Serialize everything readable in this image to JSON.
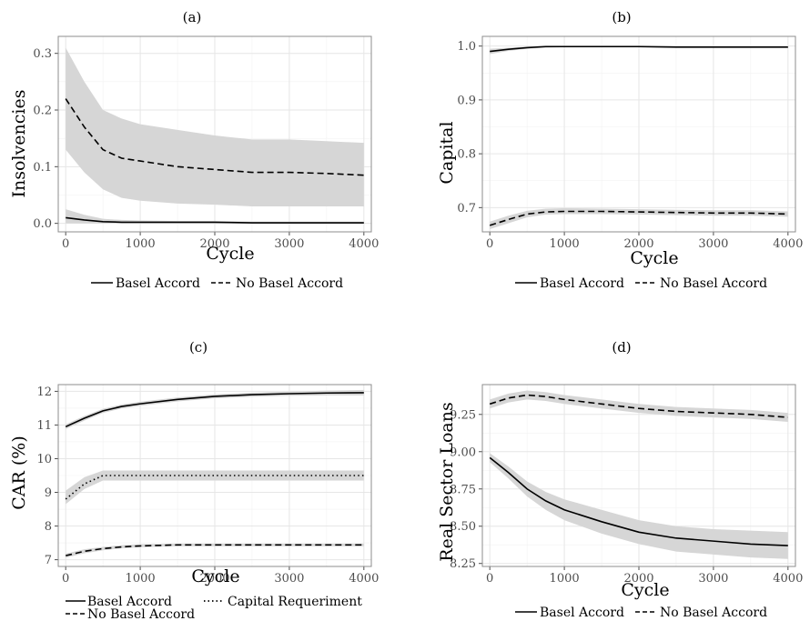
{
  "panels": [
    {
      "label": "(a)",
      "xlabel": "Cycle",
      "ylabel": "Insolvencies",
      "legend": [
        {
          "name": "Basel Accord",
          "style": "solid"
        },
        {
          "name": "No Basel Accord",
          "style": "dashed"
        }
      ]
    },
    {
      "label": "(b)",
      "xlabel": "Cycle",
      "ylabel": "Capital",
      "legend": [
        {
          "name": "Basel Accord",
          "style": "solid"
        },
        {
          "name": "No Basel Accord",
          "style": "dashed"
        }
      ]
    },
    {
      "label": "(c)",
      "xlabel": "Cycle",
      "ylabel": "CAR (%)",
      "legend": [
        {
          "name": "Basel Accord",
          "style": "solid"
        },
        {
          "name": "Capital Requeriment",
          "style": "dotted"
        },
        {
          "name": "No Basel Accord",
          "style": "dashed"
        }
      ]
    },
    {
      "label": "(d)",
      "xlabel": "Cycle",
      "ylabel": "Real Sector Loans",
      "legend": [
        {
          "name": "Basel Accord",
          "style": "solid"
        },
        {
          "name": "No Basel Accord",
          "style": "dashed"
        }
      ]
    }
  ],
  "chart_data": [
    {
      "type": "line",
      "title": "(a)",
      "xlabel": "Cycle",
      "ylabel": "Insolvencies",
      "xlim": [
        -100,
        4100
      ],
      "ylim": [
        -0.015,
        0.33
      ],
      "xticks": [
        0,
        1000,
        2000,
        3000,
        4000
      ],
      "yticks": [
        0.0,
        0.1,
        0.2,
        0.3
      ],
      "ytick_labels": [
        "0.0",
        "0.1",
        "0.2",
        "0.3"
      ],
      "grid": true,
      "legend_position": "bottom",
      "x": [
        0,
        250,
        500,
        750,
        1000,
        1500,
        2000,
        2500,
        3000,
        3500,
        4000
      ],
      "series": [
        {
          "name": "Basel Accord",
          "style": "solid",
          "values": [
            0.01,
            0.006,
            0.003,
            0.002,
            0.002,
            0.002,
            0.002,
            0.001,
            0.001,
            0.001,
            0.001
          ],
          "lower": [
            0.0,
            0.0,
            0.0,
            0.0,
            0.0,
            0.0,
            0.0,
            0.0,
            0.0,
            0.0,
            0.0
          ],
          "upper": [
            0.025,
            0.015,
            0.008,
            0.006,
            0.005,
            0.004,
            0.004,
            0.003,
            0.003,
            0.003,
            0.003
          ]
        },
        {
          "name": "No Basel Accord",
          "style": "dashed",
          "values": [
            0.22,
            0.17,
            0.13,
            0.115,
            0.11,
            0.1,
            0.095,
            0.09,
            0.09,
            0.088,
            0.085
          ],
          "lower": [
            0.13,
            0.09,
            0.06,
            0.045,
            0.04,
            0.035,
            0.033,
            0.03,
            0.03,
            0.03,
            0.03
          ],
          "upper": [
            0.31,
            0.25,
            0.2,
            0.185,
            0.175,
            0.165,
            0.155,
            0.148,
            0.148,
            0.145,
            0.142
          ]
        }
      ]
    },
    {
      "type": "line",
      "title": "(b)",
      "xlabel": "Cycle",
      "ylabel": "Capital",
      "xlim": [
        -100,
        4100
      ],
      "ylim": [
        0.655,
        1.018
      ],
      "xticks": [
        0,
        1000,
        2000,
        3000,
        4000
      ],
      "yticks": [
        0.7,
        0.8,
        0.9,
        1.0
      ],
      "ytick_labels": [
        "0.7",
        "0.8",
        "0.9",
        "1.0"
      ],
      "grid": true,
      "legend_position": "bottom",
      "x": [
        0,
        250,
        500,
        750,
        1000,
        1500,
        2000,
        2500,
        3000,
        3500,
        4000
      ],
      "series": [
        {
          "name": "Basel Accord",
          "style": "solid",
          "values": [
            0.99,
            0.994,
            0.997,
            0.999,
            0.999,
            0.999,
            0.999,
            0.998,
            0.998,
            0.998,
            0.998
          ],
          "lower": [
            0.985,
            0.991,
            0.995,
            0.997,
            0.998,
            0.998,
            0.998,
            0.997,
            0.997,
            0.997,
            0.997
          ],
          "upper": [
            0.995,
            0.997,
            0.999,
            1.0,
            1.0,
            1.0,
            1.0,
            0.999,
            0.999,
            0.999,
            0.999
          ]
        },
        {
          "name": "No Basel Accord",
          "style": "dashed",
          "values": [
            0.667,
            0.678,
            0.688,
            0.692,
            0.693,
            0.693,
            0.692,
            0.691,
            0.69,
            0.69,
            0.688
          ],
          "lower": [
            0.66,
            0.671,
            0.682,
            0.687,
            0.688,
            0.688,
            0.687,
            0.686,
            0.685,
            0.685,
            0.683
          ],
          "upper": [
            0.674,
            0.685,
            0.694,
            0.698,
            0.699,
            0.698,
            0.697,
            0.696,
            0.695,
            0.695,
            0.693
          ]
        }
      ]
    },
    {
      "type": "line",
      "title": "(c)",
      "xlabel": "Cycle",
      "ylabel": "CAR (%)",
      "xlim": [
        -100,
        4100
      ],
      "ylim": [
        6.8,
        12.2
      ],
      "xticks": [
        0,
        1000,
        2000,
        3000,
        4000
      ],
      "yticks": [
        7,
        8,
        9,
        10,
        11,
        12
      ],
      "ytick_labels": [
        "7",
        "8",
        "9",
        "10",
        "11",
        "12"
      ],
      "grid": true,
      "legend_position": "bottom",
      "x": [
        0,
        250,
        500,
        750,
        1000,
        1500,
        2000,
        2500,
        3000,
        3500,
        4000
      ],
      "series": [
        {
          "name": "Basel Accord",
          "style": "solid",
          "values": [
            10.95,
            11.2,
            11.42,
            11.55,
            11.63,
            11.76,
            11.85,
            11.9,
            11.93,
            11.95,
            11.96
          ],
          "lower": [
            10.88,
            11.13,
            11.36,
            11.49,
            11.57,
            11.7,
            11.79,
            11.84,
            11.87,
            11.88,
            11.88
          ],
          "upper": [
            11.02,
            11.27,
            11.48,
            11.61,
            11.69,
            11.82,
            11.91,
            11.96,
            11.99,
            12.02,
            12.04
          ]
        },
        {
          "name": "Capital Requeriment",
          "style": "dotted",
          "values": [
            8.8,
            9.25,
            9.5,
            9.5,
            9.5,
            9.5,
            9.5,
            9.5,
            9.5,
            9.5,
            9.5
          ],
          "lower": [
            8.65,
            9.1,
            9.35,
            9.35,
            9.35,
            9.35,
            9.35,
            9.35,
            9.35,
            9.35,
            9.35
          ],
          "upper": [
            9.05,
            9.45,
            9.65,
            9.65,
            9.65,
            9.65,
            9.65,
            9.65,
            9.65,
            9.65,
            9.65
          ]
        },
        {
          "name": "No Basel Accord",
          "style": "dashed",
          "values": [
            7.12,
            7.25,
            7.33,
            7.38,
            7.41,
            7.44,
            7.44,
            7.44,
            7.44,
            7.44,
            7.44
          ],
          "lower": [
            7.06,
            7.19,
            7.28,
            7.34,
            7.37,
            7.4,
            7.4,
            7.4,
            7.4,
            7.4,
            7.4
          ],
          "upper": [
            7.18,
            7.31,
            7.38,
            7.43,
            7.46,
            7.48,
            7.48,
            7.48,
            7.48,
            7.48,
            7.48
          ]
        }
      ]
    },
    {
      "type": "line",
      "title": "(d)",
      "xlabel": "Cycle",
      "ylabel": "Real Sector Loans",
      "xlim": [
        -100,
        4100
      ],
      "ylim": [
        8.23,
        9.45
      ],
      "xticks": [
        0,
        1000,
        2000,
        3000,
        4000
      ],
      "yticks": [
        8.25,
        8.5,
        8.75,
        9.0,
        9.25
      ],
      "ytick_labels": [
        "8.25",
        "8.50",
        "8.75",
        "9.00",
        "9.25"
      ],
      "grid": true,
      "legend_position": "bottom",
      "x": [
        0,
        250,
        500,
        750,
        1000,
        1500,
        2000,
        2500,
        3000,
        3500,
        4000
      ],
      "series": [
        {
          "name": "Basel Accord",
          "style": "solid",
          "values": [
            8.96,
            8.86,
            8.75,
            8.67,
            8.61,
            8.53,
            8.46,
            8.42,
            8.4,
            8.38,
            8.37
          ],
          "lower": [
            8.93,
            8.82,
            8.7,
            8.61,
            8.54,
            8.45,
            8.38,
            8.33,
            8.31,
            8.29,
            8.28
          ],
          "upper": [
            8.99,
            8.9,
            8.8,
            8.73,
            8.68,
            8.61,
            8.54,
            8.5,
            8.48,
            8.47,
            8.46
          ]
        },
        {
          "name": "No Basel Accord",
          "style": "dashed",
          "values": [
            9.32,
            9.36,
            9.38,
            9.37,
            9.35,
            9.32,
            9.29,
            9.27,
            9.26,
            9.25,
            9.23
          ],
          "lower": [
            9.29,
            9.33,
            9.35,
            9.34,
            9.32,
            9.29,
            9.26,
            9.24,
            9.23,
            9.22,
            9.2
          ],
          "upper": [
            9.35,
            9.39,
            9.41,
            9.4,
            9.38,
            9.35,
            9.32,
            9.3,
            9.29,
            9.28,
            9.26
          ]
        }
      ]
    }
  ]
}
